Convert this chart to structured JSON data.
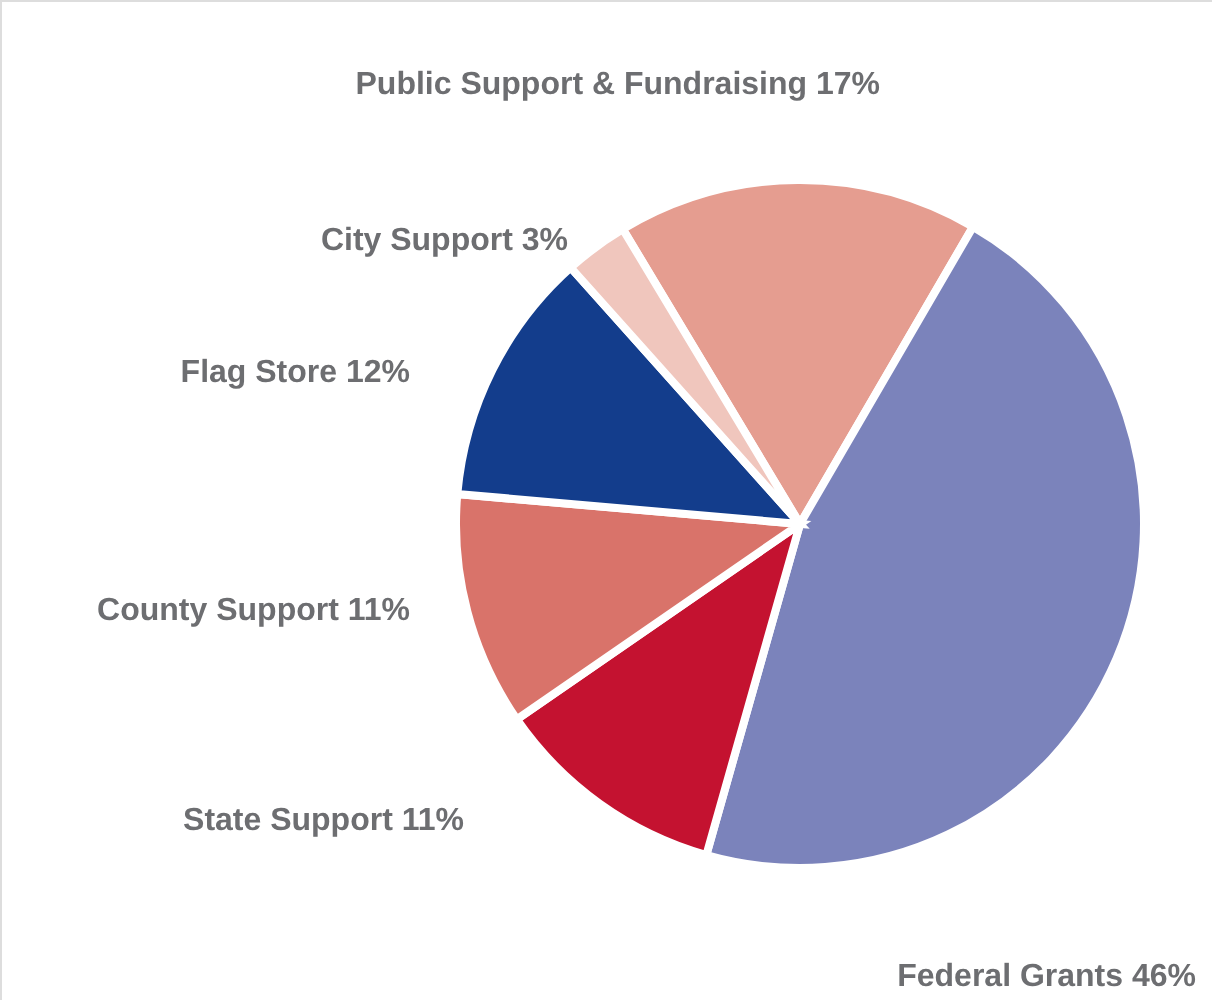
{
  "chart_data": {
    "type": "pie",
    "categories": [
      "Public Support & Fundraising",
      "Federal Grants",
      "State Support",
      "County Support",
      "Flag Store",
      "City Support"
    ],
    "values": [
      17,
      46,
      11,
      11,
      12,
      3
    ],
    "value_labels": [
      "17%",
      "46%",
      "11%",
      "11%",
      "12%",
      "3%"
    ],
    "colors": [
      "#e59d90",
      "#7b83bb",
      "#c41230",
      "#d9736a",
      "#133d8c",
      "#f0c6bd"
    ]
  }
}
